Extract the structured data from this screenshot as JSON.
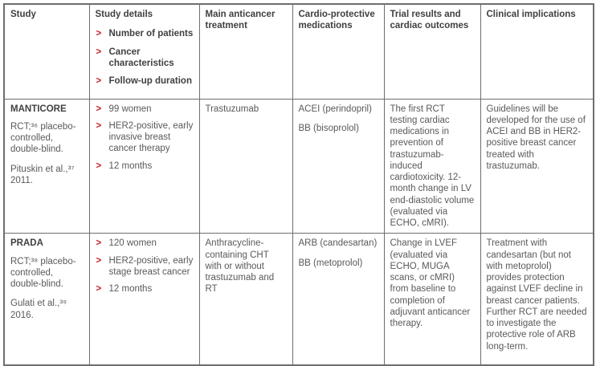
{
  "table": {
    "accent_red": "#c9242e",
    "border_color": "#6d6e71",
    "header": {
      "study": "Study",
      "study_details": {
        "title": "Study details",
        "items": [
          "Number of patients",
          "Cancer characteristics",
          "Follow-up duration"
        ]
      },
      "main_treatment": "Main anticancer treatment",
      "cardio_meds": "Cardio-protective medications",
      "trial_results": "Trial results and cardiac outcomes",
      "clinical_implications": "Clinical implications"
    },
    "rows": [
      {
        "study": {
          "name": "MANTICORE",
          "design": "RCT;³⁶ placebo-controlled, double-blind.",
          "citation": "Pituskin et al.,³⁷ 2011."
        },
        "details": [
          "99 women",
          "HER2-positive, early invasive breast cancer therapy",
          "12 months"
        ],
        "treatment": "Trastuzumab",
        "medications": [
          "ACEI (perindopril)",
          "BB (bisoprolol)"
        ],
        "results": "The first RCT testing cardiac medications in prevention of trastuzumab-induced cardiotoxicity. 12-month change in LV end-diastolic volume (evaluated via ECHO, cMRI).",
        "implications": "Guidelines will be developed for the use of ACEI and BB in HER2-positive breast cancer treated with trastuzumab."
      },
      {
        "study": {
          "name": "PRADA",
          "design": "RCT;³⁸ placebo-controlled, double-blind.",
          "citation": "Gulati et al.,³⁹ 2016."
        },
        "details": [
          "120 women",
          "HER2-positive, early stage breast cancer",
          "12 months"
        ],
        "treatment": "Anthracycline-containing CHT with or without trastuzumab and RT",
        "medications": [
          "ARB (candesartan)",
          "BB (metoprolol)"
        ],
        "results": "Change in LVEF (evaluated via ECHO, MUGA scans, or cMRI) from baseline to completion of adjuvant anticancer therapy.",
        "implications": "Treatment with candesartan (but not with metoprolol) provides protection against LVEF decline in breast cancer patients. Further RCT are needed to investigate the protective role of ARB long-term."
      }
    ]
  }
}
